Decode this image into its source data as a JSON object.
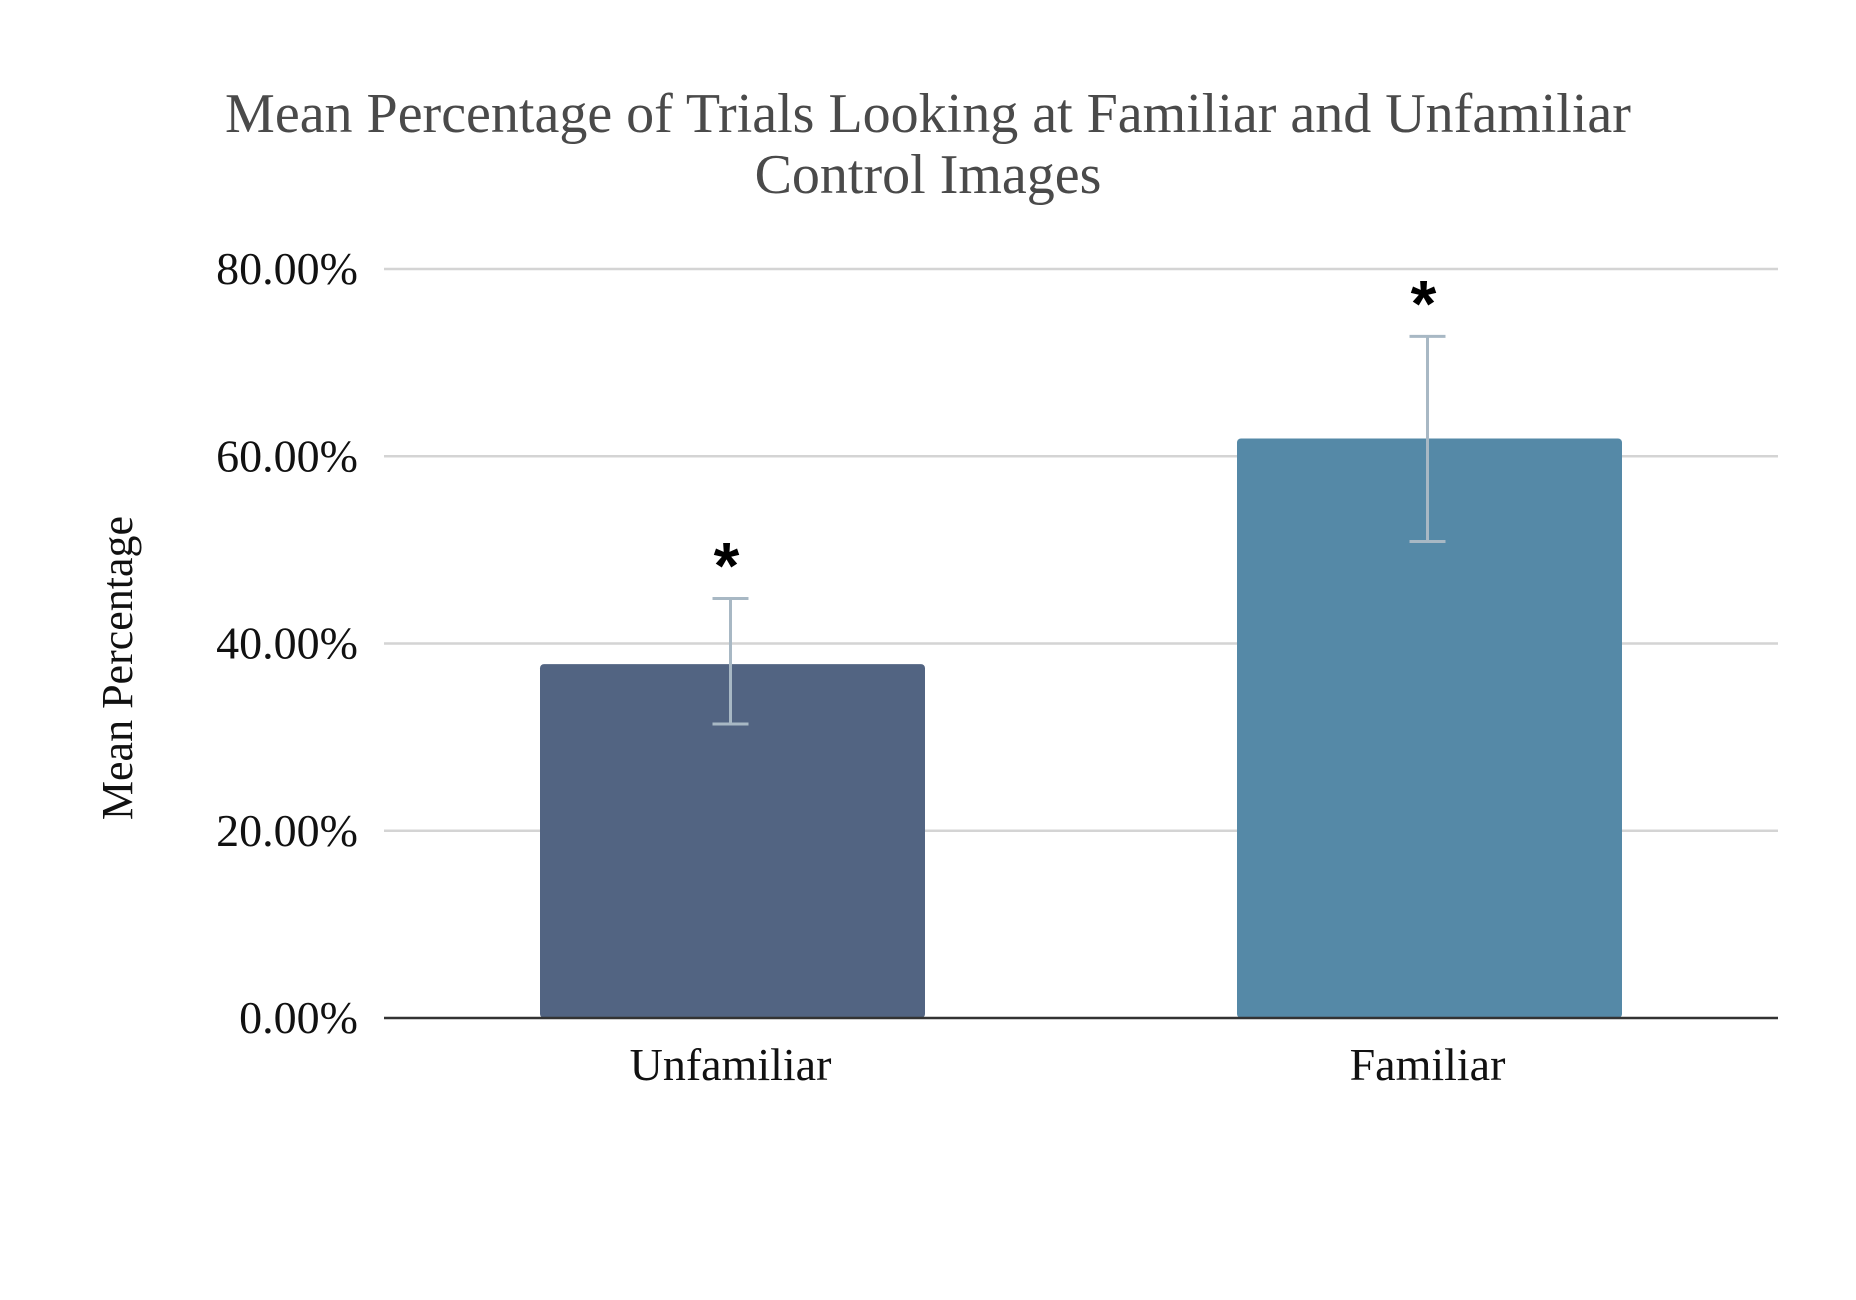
{
  "chart_data": {
    "type": "bar",
    "title": "Mean Percentage of Trials Looking at Familiar and Unfamiliar Control Images",
    "title_lines": [
      "Mean Percentage of Trials Looking at Familiar and Unfamiliar",
      "Control Images"
    ],
    "xlabel": "",
    "ylabel": "Mean Percentage",
    "categories": [
      "Unfamiliar",
      "Familiar"
    ],
    "values": [
      37.8,
      61.9
    ],
    "error_bars": [
      {
        "low": 31.4,
        "high": 44.8
      },
      {
        "low": 50.9,
        "high": 72.8
      }
    ],
    "annotations": [
      "*",
      "*"
    ],
    "ylim": [
      0,
      80
    ],
    "yticks": [
      0,
      20,
      40,
      60,
      80
    ],
    "ytick_labels": [
      "0.00%",
      "20.00%",
      "40.00%",
      "60.00%",
      "80.00%"
    ],
    "grid": true,
    "legend": "none",
    "colors": {
      "bars": [
        "#526482",
        "#5589a7"
      ],
      "error_bar": "#a8b8c4",
      "gridline": "#d4d4d4",
      "axis": "#333333",
      "title": "#4a4a4a",
      "text": "#111111"
    }
  }
}
